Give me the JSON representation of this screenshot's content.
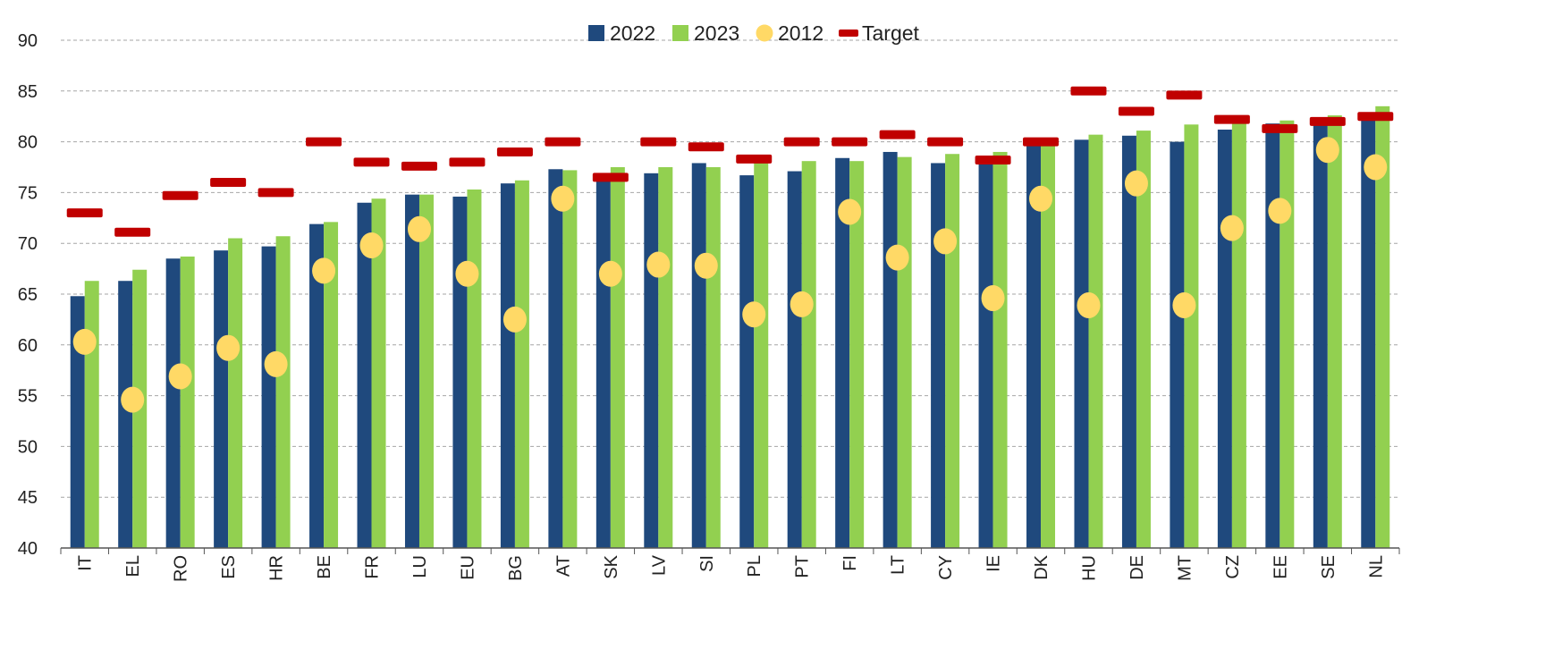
{
  "chart_data": {
    "type": "bar",
    "title": "",
    "xlabel": "",
    "ylabel": "",
    "ylim": [
      40,
      90
    ],
    "yticks": [
      40,
      45,
      50,
      55,
      60,
      65,
      70,
      75,
      80,
      85,
      90
    ],
    "grid": true,
    "legend_position": "top-center",
    "categories": [
      "IT",
      "EL",
      "RO",
      "ES",
      "HR",
      "BE",
      "FR",
      "LU",
      "EU",
      "BG",
      "AT",
      "SK",
      "LV",
      "SI",
      "PL",
      "PT",
      "FI",
      "LT",
      "CY",
      "IE",
      "DK",
      "HU",
      "DE",
      "MT",
      "CZ",
      "EE",
      "SE",
      "NL"
    ],
    "series": [
      {
        "name": "2022",
        "kind": "bar",
        "color": "#1F497D",
        "values": [
          64.8,
          66.3,
          68.5,
          69.3,
          69.7,
          71.9,
          74.0,
          74.8,
          74.6,
          75.9,
          77.3,
          76.7,
          76.9,
          77.9,
          76.7,
          77.1,
          78.4,
          79.0,
          77.9,
          78.2,
          79.9,
          80.2,
          80.6,
          80.0,
          81.2,
          81.8,
          82.1,
          82.3
        ]
      },
      {
        "name": "2023",
        "kind": "bar",
        "color": "#92D050",
        "values": [
          66.3,
          67.4,
          68.7,
          70.5,
          70.7,
          72.1,
          74.4,
          74.8,
          75.3,
          76.2,
          77.2,
          77.5,
          77.5,
          77.5,
          78.0,
          78.1,
          78.1,
          78.5,
          78.8,
          79.0,
          80.0,
          80.7,
          81.1,
          81.7,
          82.0,
          82.1,
          82.6,
          83.5
        ]
      },
      {
        "name": "2012",
        "kind": "dot",
        "color": "#FFD966",
        "values": [
          60.3,
          54.6,
          56.9,
          59.7,
          58.1,
          67.3,
          69.8,
          71.4,
          67.0,
          62.5,
          74.4,
          67.0,
          67.9,
          67.8,
          63.0,
          64.0,
          73.1,
          68.6,
          70.2,
          64.6,
          74.4,
          63.9,
          75.9,
          63.9,
          71.5,
          73.2,
          79.2,
          77.5
        ]
      },
      {
        "name": "Target",
        "kind": "dash",
        "color": "#C00000",
        "values": [
          73.0,
          71.1,
          74.7,
          76.0,
          75.0,
          80.0,
          78.0,
          77.6,
          78.0,
          79.0,
          80.0,
          76.5,
          80.0,
          79.5,
          78.3,
          80.0,
          80.0,
          80.7,
          80.0,
          78.2,
          80.0,
          85.0,
          83.0,
          84.6,
          82.2,
          81.3,
          82.0,
          82.5
        ]
      }
    ]
  }
}
